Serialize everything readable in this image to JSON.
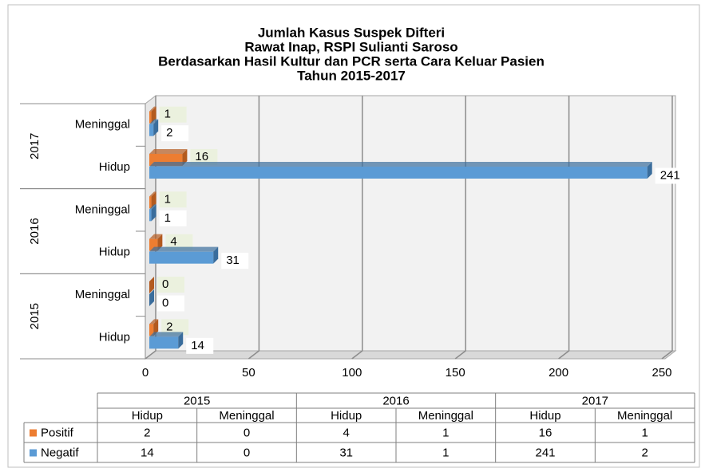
{
  "chart_data": {
    "type": "bar",
    "orientation": "horizontal",
    "title": [
      "Jumlah Kasus Suspek Difteri",
      "Rawat Inap, RSPI Sulianti Saroso",
      "Berdasarkan Hasil Kultur dan PCR serta Cara Keluar Pasien",
      "Tahun 2015-2017"
    ],
    "groups": [
      {
        "name": "2015",
        "categories": [
          "Hidup",
          "Meninggal"
        ]
      },
      {
        "name": "2016",
        "categories": [
          "Hidup",
          "Meninggal"
        ]
      },
      {
        "name": "2017",
        "categories": [
          "Hidup",
          "Meninggal"
        ]
      }
    ],
    "series": [
      {
        "name": "Positif",
        "color": "#ed7d31",
        "values": [
          2,
          0,
          4,
          1,
          16,
          1
        ]
      },
      {
        "name": "Negatif",
        "color": "#5b9bd5",
        "values": [
          14,
          0,
          31,
          1,
          241,
          2
        ]
      }
    ],
    "xlim": [
      0,
      250
    ],
    "xticks": [
      0,
      50,
      100,
      150,
      200,
      250
    ],
    "grid": true
  }
}
